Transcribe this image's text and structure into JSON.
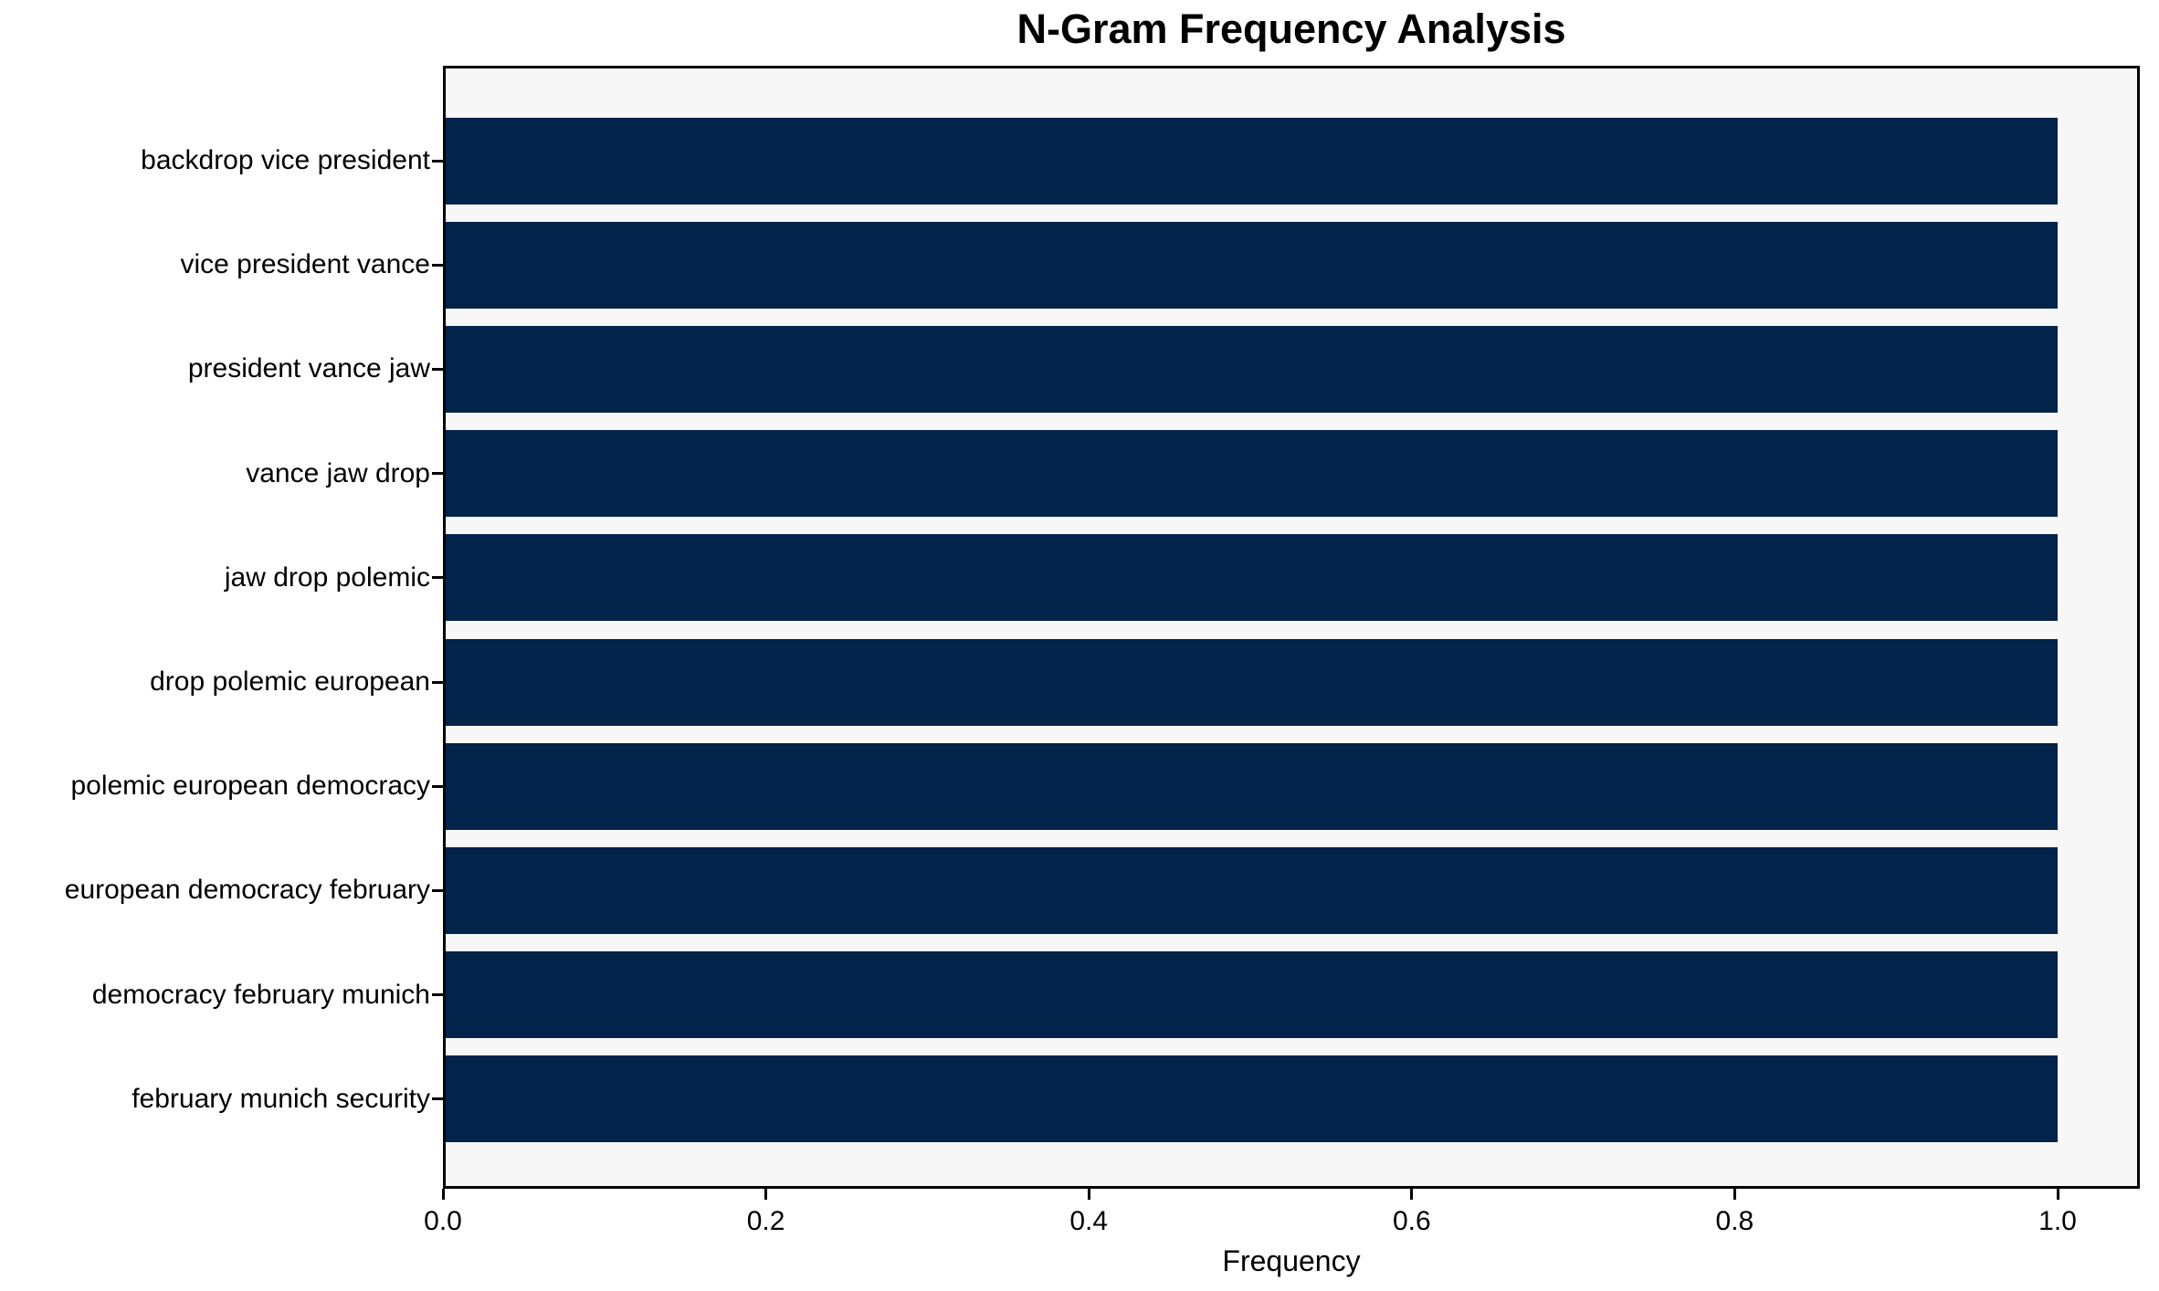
{
  "chart_data": {
    "type": "bar",
    "orientation": "horizontal",
    "title": "N-Gram Frequency Analysis",
    "xlabel": "Frequency",
    "ylabel": "",
    "categories": [
      "backdrop vice president",
      "vice president vance",
      "president vance jaw",
      "vance jaw drop",
      "jaw drop polemic",
      "drop polemic european",
      "polemic european democracy",
      "european democracy february",
      "democracy february munich",
      "february munich security"
    ],
    "values": [
      1.0,
      1.0,
      1.0,
      1.0,
      1.0,
      1.0,
      1.0,
      1.0,
      1.0,
      1.0
    ],
    "xlim": [
      0,
      1.05
    ],
    "xticks": [
      0.0,
      0.2,
      0.4,
      0.6,
      0.8,
      1.0
    ],
    "xtick_labels": [
      "0.0",
      "0.2",
      "0.4",
      "0.6",
      "0.8",
      "1.0"
    ],
    "grid": false,
    "legend": null,
    "colors": {
      "bar": "#02234a",
      "plot_background": "#f7f7f7",
      "figure_background": "#ffffff",
      "text": "#000000"
    }
  }
}
